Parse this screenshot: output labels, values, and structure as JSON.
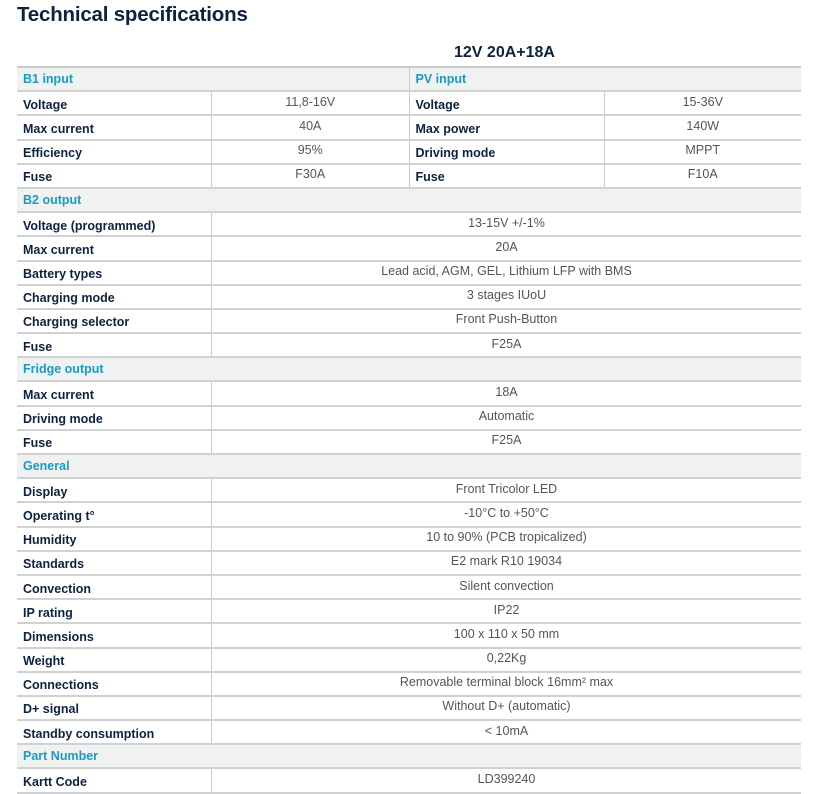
{
  "title": "Technical specifications",
  "model": "12V 20A+18A",
  "colors": {
    "title": "#0d2240",
    "section": "#1a9bc4",
    "value": "#555555",
    "section_bg": "#f0f1f1"
  },
  "dual_section": {
    "left": {
      "title": "B1 input",
      "rows": [
        {
          "label": "Voltage",
          "value": "11,8-16V"
        },
        {
          "label": "Max current",
          "value": "40A"
        },
        {
          "label": "Efficiency",
          "value": "95%"
        },
        {
          "label": "Fuse",
          "value": "F30A"
        }
      ]
    },
    "right": {
      "title": "PV input",
      "rows": [
        {
          "label": "Voltage",
          "value": "15-36V"
        },
        {
          "label": "Max power",
          "value": "140W"
        },
        {
          "label": "Driving mode",
          "value": "MPPT"
        },
        {
          "label": "Fuse",
          "value": "F10A"
        }
      ]
    }
  },
  "sections": [
    {
      "title": "B2 output",
      "rows": [
        {
          "label": "Voltage (programmed)",
          "value": "13-15V +/-1%"
        },
        {
          "label": "Max current",
          "value": "20A"
        },
        {
          "label": "Battery types",
          "value": "Lead acid, AGM, GEL, Lithium LFP with BMS"
        },
        {
          "label": "Charging mode",
          "value": "3 stages IUoU"
        },
        {
          "label": "Charging selector",
          "value": "Front Push-Button"
        },
        {
          "label": "Fuse",
          "value": "F25A"
        }
      ]
    },
    {
      "title": "Fridge output",
      "rows": [
        {
          "label": "Max current",
          "value": "18A"
        },
        {
          "label": "Driving mode",
          "value": "Automatic"
        },
        {
          "label": "Fuse",
          "value": "F25A"
        }
      ]
    },
    {
      "title": "General",
      "rows": [
        {
          "label": "Display",
          "value": "Front Tricolor LED"
        },
        {
          "label": "Operating t°",
          "value": "-10°C to +50°C"
        },
        {
          "label": "Humidity",
          "value": "10 to 90% (PCB tropicalized)"
        },
        {
          "label": "Standards",
          "value": "E2 mark R10 19034"
        },
        {
          "label": "Convection",
          "value": "Silent convection"
        },
        {
          "label": "IP rating",
          "value": "IP22"
        },
        {
          "label": "Dimensions",
          "value": "100 x 110 x 50 mm"
        },
        {
          "label": "Weight",
          "value": "0,22Kg"
        },
        {
          "label": "Connections",
          "value": "Removable terminal block 16mm² max"
        },
        {
          "label": "D+ signal",
          "value": "Without D+ (automatic)"
        },
        {
          "label": "Standby consumption",
          "value": "< 10mA"
        }
      ]
    },
    {
      "title": "Part Number",
      "rows": [
        {
          "label": "Kartt Code",
          "value": "LD399240"
        }
      ]
    }
  ]
}
